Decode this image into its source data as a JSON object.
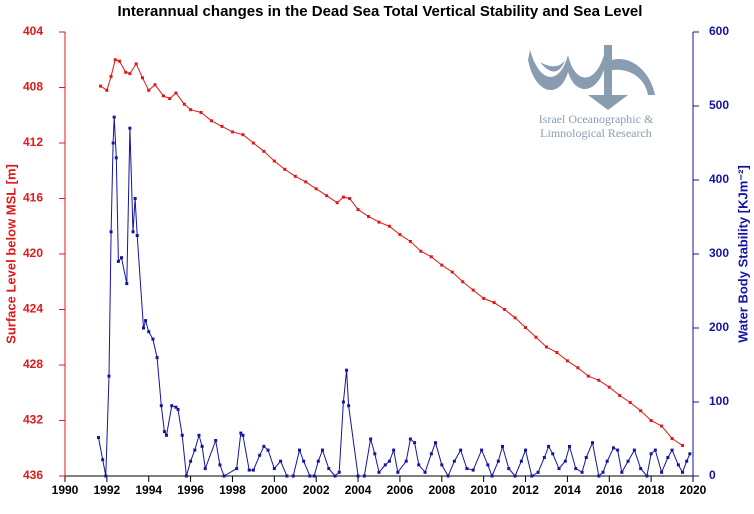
{
  "chart_data": {
    "type": "line",
    "title": "Interannual changes in the Dead Sea Total Vertical Stability and Sea Level",
    "y_label": "Surface Level below MSL [m]",
    "y2_label": "Water Body Stability [KJm⁻²]",
    "logo_text": [
      "Israel Oceanographic &",
      "Limnological Research"
    ],
    "xlim": [
      1990,
      2020
    ],
    "xticks": [
      1990,
      1992,
      1994,
      1996,
      1998,
      2000,
      2002,
      2004,
      2006,
      2008,
      2010,
      2012,
      2014,
      2016,
      2018,
      2020
    ],
    "ylim": [
      436,
      404
    ],
    "yticks": [
      404,
      408,
      412,
      416,
      420,
      424,
      428,
      432,
      436
    ],
    "y2lim": [
      0,
      600
    ],
    "y2ticks": [
      0,
      100,
      200,
      300,
      400,
      500,
      600
    ],
    "grid": false,
    "series": [
      {
        "color": "#e01818",
        "x": [
          1991.7,
          1992.0,
          1992.2,
          1992.4,
          1992.6,
          1992.9,
          1993.1,
          1993.4,
          1993.7,
          1994.0,
          1994.3,
          1994.7,
          1995.0,
          1995.3,
          1995.7,
          1996.0,
          1996.5,
          1997.0,
          1997.5,
          1998.0,
          1998.5,
          1999.0,
          1999.5,
          2000.0,
          2000.5,
          2001.0,
          2001.5,
          2002.0,
          2002.5,
          2003.0,
          2003.3,
          2003.6,
          2004.0,
          2004.5,
          2005.0,
          2005.5,
          2006.0,
          2006.5,
          2007.0,
          2007.5,
          2008.0,
          2008.5,
          2009.0,
          2009.5,
          2010.0,
          2010.5,
          2011.0,
          2011.5,
          2012.0,
          2012.5,
          2013.0,
          2013.5,
          2014.0,
          2014.5,
          2015.0,
          2015.5,
          2016.0,
          2016.5,
          2017.0,
          2017.5,
          2018.0,
          2018.5,
          2019.0,
          2019.5
        ],
        "values": [
          407.9,
          408.2,
          407.2,
          406.0,
          406.1,
          406.9,
          407.0,
          406.3,
          407.3,
          408.2,
          407.8,
          408.6,
          408.8,
          408.4,
          409.2,
          409.6,
          409.8,
          410.4,
          410.8,
          411.2,
          411.4,
          412.0,
          412.6,
          413.3,
          413.9,
          414.4,
          414.8,
          415.3,
          415.8,
          416.3,
          415.9,
          416.0,
          416.8,
          417.3,
          417.7,
          418.0,
          418.6,
          419.1,
          419.8,
          420.2,
          420.8,
          421.3,
          422.0,
          422.6,
          423.2,
          423.5,
          424.0,
          424.6,
          425.3,
          426.0,
          426.7,
          427.1,
          427.7,
          428.2,
          428.8,
          429.1,
          429.6,
          430.2,
          430.7,
          431.3,
          432.0,
          432.4,
          433.3,
          433.8
        ]
      },
      {
        "color": "#1414a0",
        "axis": "y2",
        "x": [
          1991.6,
          1991.8,
          1991.95,
          1992.1,
          1992.2,
          1992.3,
          1992.35,
          1992.45,
          1992.55,
          1992.7,
          1992.95,
          1993.1,
          1993.25,
          1993.35,
          1993.45,
          1993.75,
          1993.85,
          1994.0,
          1994.2,
          1994.4,
          1994.6,
          1994.75,
          1994.85,
          1995.1,
          1995.3,
          1995.4,
          1995.6,
          1995.8,
          1996.0,
          1996.2,
          1996.4,
          1996.55,
          1996.7,
          1997.2,
          1997.4,
          1997.6,
          1998.2,
          1998.4,
          1998.5,
          1998.8,
          1999.0,
          1999.3,
          1999.5,
          1999.7,
          2000.0,
          2000.3,
          2000.6,
          2000.9,
          2001.2,
          2001.4,
          2001.7,
          2001.9,
          2002.1,
          2002.3,
          2002.6,
          2002.9,
          2003.1,
          2003.3,
          2003.45,
          2003.55,
          2004.0,
          2004.3,
          2004.6,
          2004.8,
          2005.0,
          2005.3,
          2005.5,
          2005.7,
          2005.9,
          2006.3,
          2006.5,
          2006.7,
          2006.9,
          2007.2,
          2007.5,
          2007.7,
          2008.0,
          2008.3,
          2008.6,
          2008.9,
          2009.2,
          2009.5,
          2009.9,
          2010.2,
          2010.4,
          2010.7,
          2010.9,
          2011.2,
          2011.5,
          2011.8,
          2012.0,
          2012.3,
          2012.6,
          2012.9,
          2013.1,
          2013.3,
          2013.6,
          2013.9,
          2014.1,
          2014.4,
          2014.7,
          2014.9,
          2015.2,
          2015.5,
          2015.7,
          2015.9,
          2016.2,
          2016.4,
          2016.6,
          2016.9,
          2017.2,
          2017.5,
          2017.8,
          2018.0,
          2018.2,
          2018.5,
          2018.8,
          2019.0,
          2019.3,
          2019.5,
          2019.7,
          2019.85
        ],
        "values": [
          52,
          22,
          0,
          135,
          330,
          450,
          485,
          430,
          290,
          295,
          260,
          470,
          330,
          375,
          325,
          200,
          210,
          195,
          185,
          160,
          95,
          60,
          55,
          95,
          93,
          90,
          55,
          0,
          20,
          35,
          55,
          40,
          10,
          48,
          15,
          0,
          10,
          58,
          55,
          8,
          8,
          28,
          40,
          35,
          10,
          20,
          0,
          0,
          35,
          20,
          0,
          0,
          20,
          35,
          10,
          0,
          5,
          100,
          143,
          95,
          0,
          0,
          50,
          30,
          5,
          15,
          20,
          35,
          5,
          20,
          50,
          45,
          15,
          5,
          30,
          45,
          15,
          0,
          20,
          35,
          10,
          8,
          35,
          15,
          0,
          20,
          40,
          10,
          0,
          20,
          35,
          0,
          5,
          25,
          40,
          30,
          10,
          20,
          40,
          10,
          5,
          25,
          45,
          0,
          5,
          20,
          38,
          35,
          5,
          20,
          35,
          10,
          0,
          30,
          35,
          5,
          25,
          35,
          15,
          5,
          20,
          30
        ]
      }
    ]
  }
}
